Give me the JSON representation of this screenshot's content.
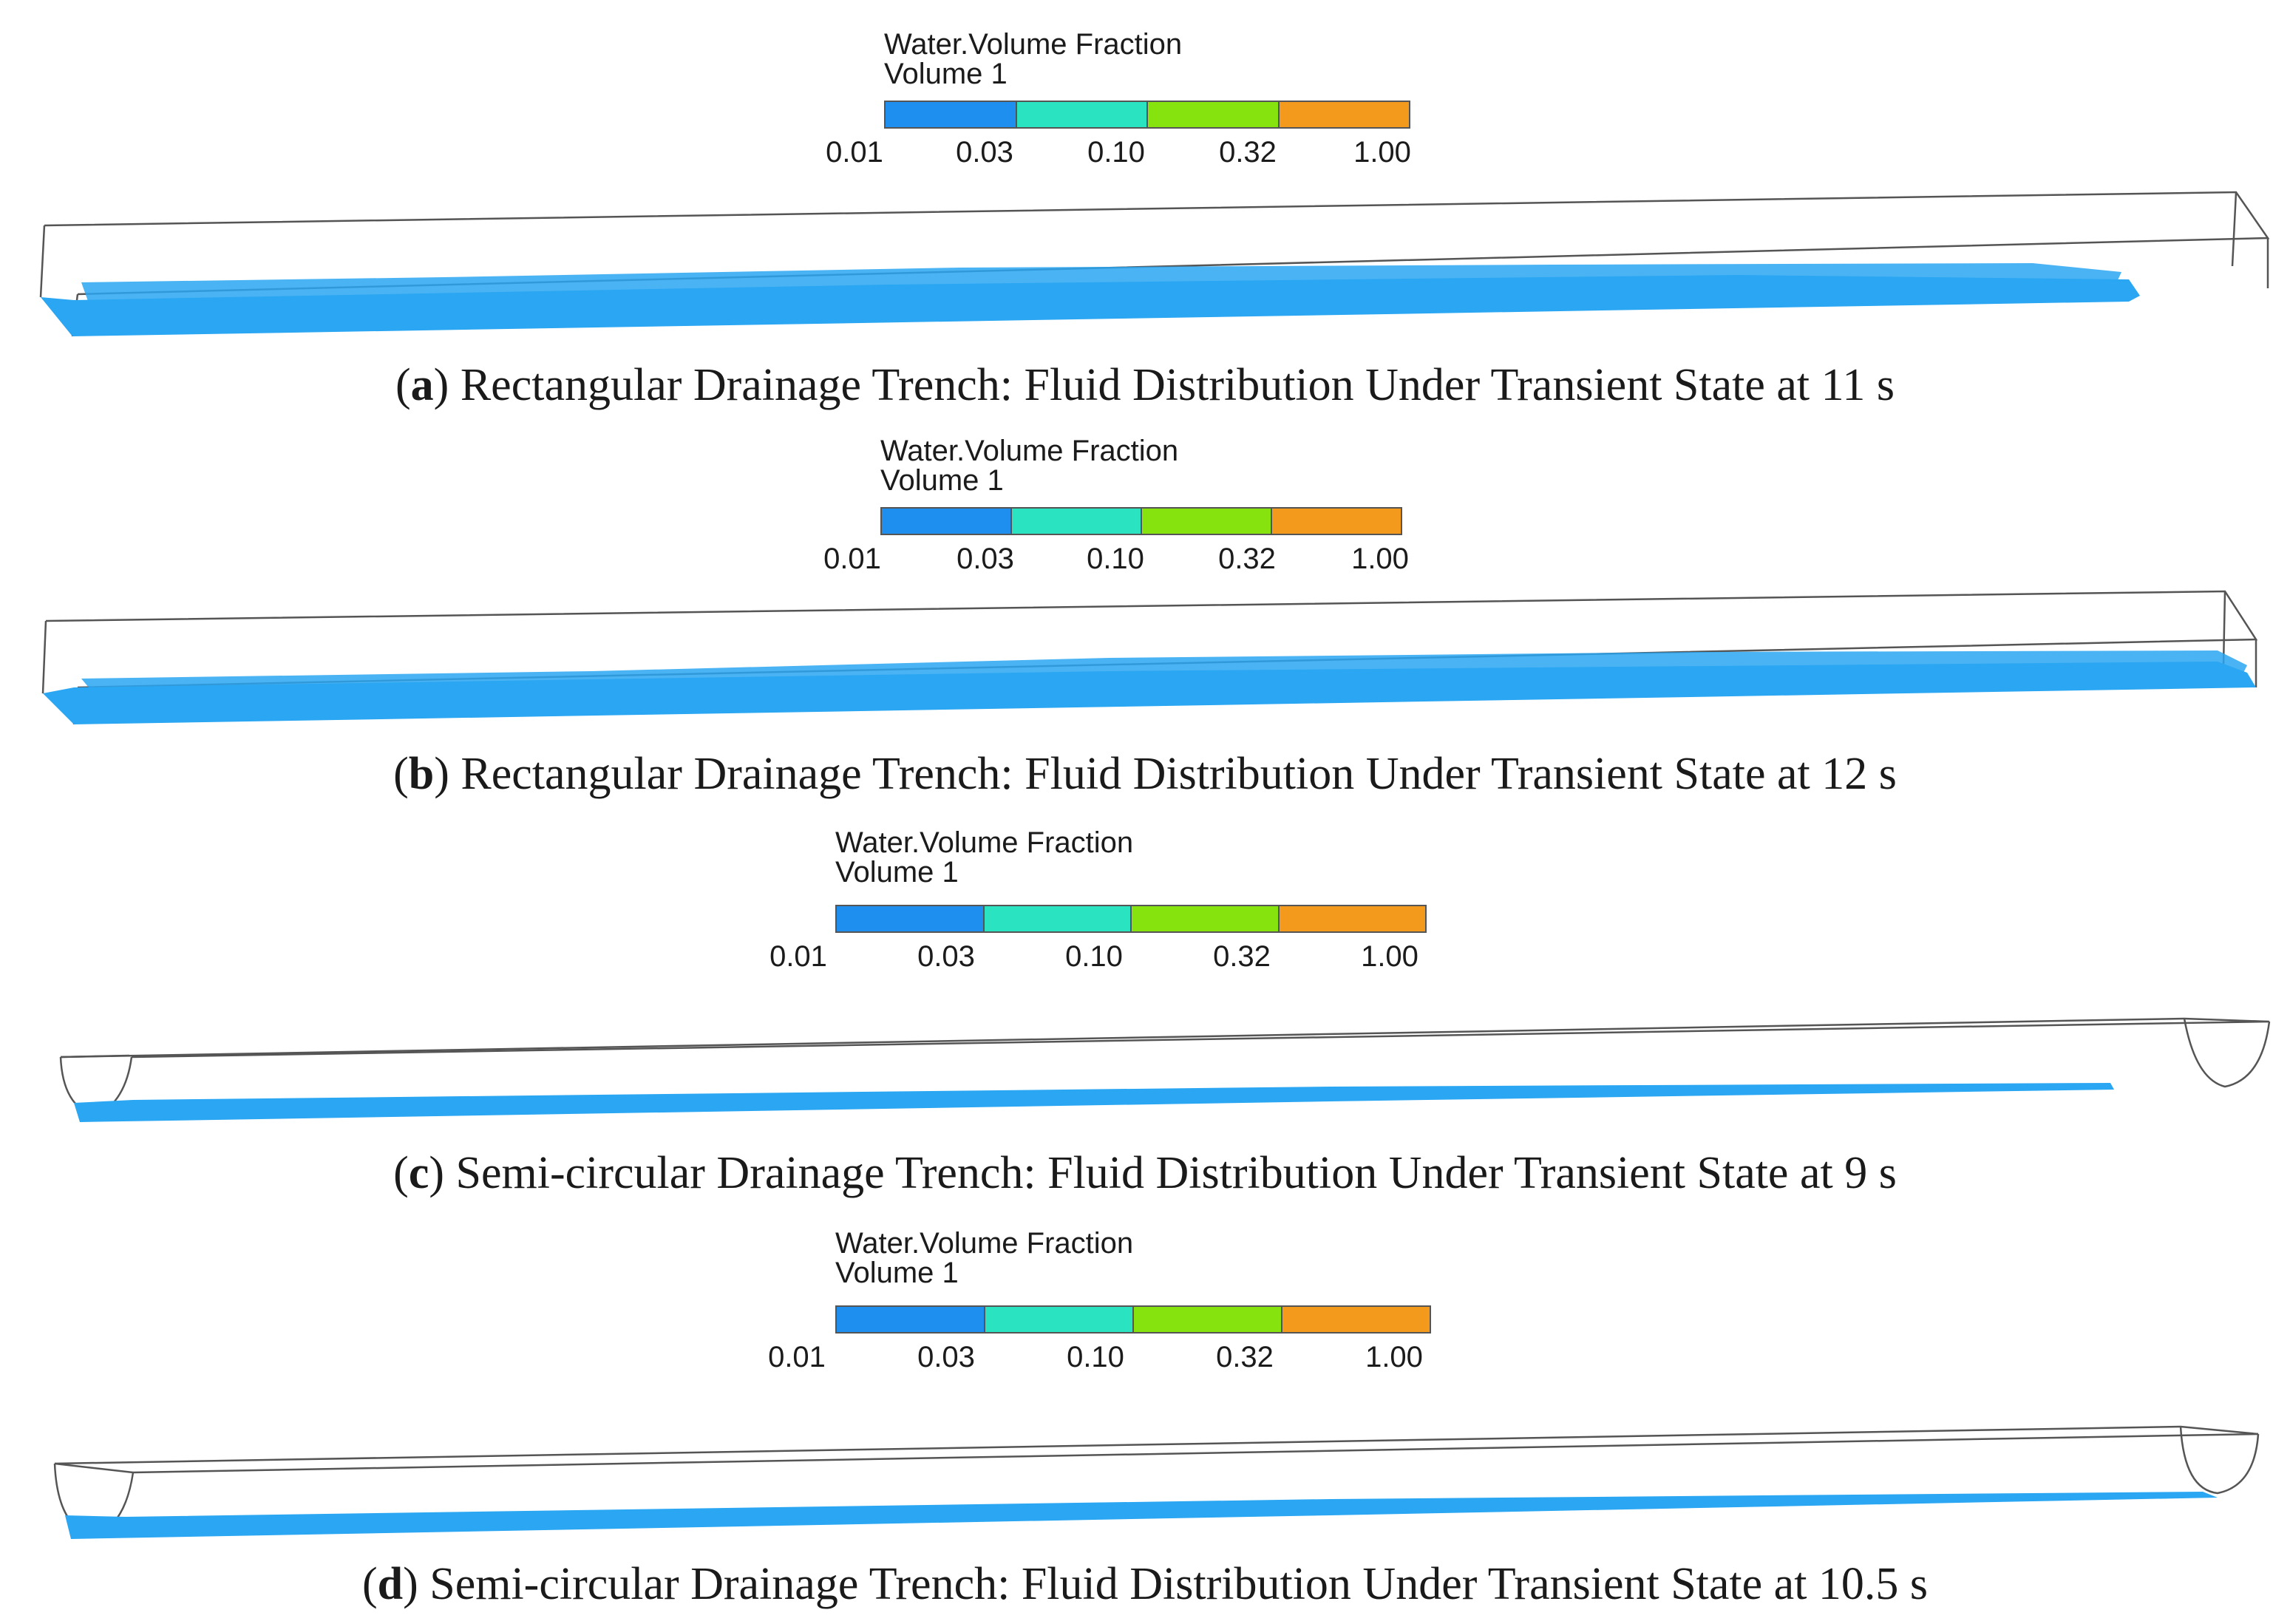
{
  "legend": {
    "title": "Water.Volume Fraction",
    "subtitle": "Volume 1",
    "ticks": [
      "0.01",
      "0.03",
      "0.10",
      "0.32",
      "1.00"
    ],
    "colors": [
      "#1e8fef",
      "#29e3c1",
      "#86e30d",
      "#f39a1d"
    ]
  },
  "water_color": "#2aa6f2",
  "panels": [
    {
      "letter": "a",
      "text": "Rectangular Drainage Trench: Fluid Distribution Under Transient State at 11 s",
      "shape": "rectangular"
    },
    {
      "letter": "b",
      "text": "Rectangular Drainage Trench: Fluid Distribution Under Transient State at 12 s",
      "shape": "rectangular"
    },
    {
      "letter": "c",
      "text": "Semi-circular Drainage Trench: Fluid Distribution Under Transient State at 9 s",
      "shape": "semicircular"
    },
    {
      "letter": "d",
      "text": "Semi-circular Drainage Trench: Fluid Distribution Under Transient State at 10.5 s",
      "shape": "semicircular"
    }
  ]
}
